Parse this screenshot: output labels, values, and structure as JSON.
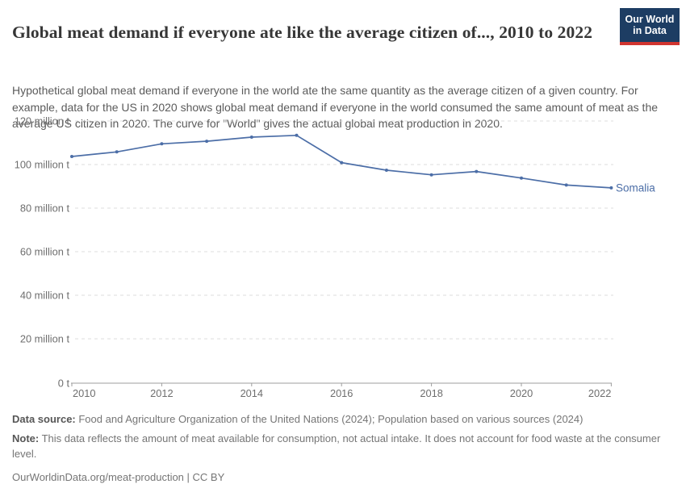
{
  "header": {
    "title": "Global meat demand if everyone ate like the average citizen of..., 2010 to 2022",
    "subtitle": "Hypothetical global meat demand if everyone in the world ate the same quantity as the average citizen of a given country. For example, data for the US in 2020 shows global meat demand if everyone in the world consumed the same amount of meat as the average US citizen in 2020. The curve for \"World\" gives the actual global meat production in 2020.",
    "logo": {
      "line1": "Our World",
      "line2": "in Data",
      "bg_color": "#1d3d63",
      "accent_color": "#d13530"
    }
  },
  "chart_data": {
    "type": "line",
    "title": "Global meat demand if everyone ate like the average citizen of..., 2010 to 2022",
    "x": [
      2010,
      2011,
      2012,
      2013,
      2014,
      2015,
      2016,
      2017,
      2018,
      2019,
      2020,
      2021,
      2022
    ],
    "series": [
      {
        "name": "Somalia",
        "color": "#4c6ea7",
        "values": [
          103.7,
          105.8,
          109.5,
          110.7,
          112.6,
          113.4,
          100.9,
          97.4,
          95.3,
          96.8,
          93.8,
          90.6,
          89.3
        ]
      }
    ],
    "unit": "million t",
    "ylim": [
      0,
      120
    ],
    "ytick_values": [
      0,
      20,
      40,
      60,
      80,
      100,
      120
    ],
    "ytick_labels": [
      "0 t",
      "20 million t",
      "40 million t",
      "60 million t",
      "80 million t",
      "100 million t",
      "120 million t"
    ],
    "xtick_values": [
      2010,
      2012,
      2014,
      2016,
      2018,
      2020,
      2022
    ],
    "xtick_labels": [
      "2010",
      "2012",
      "2014",
      "2016",
      "2018",
      "2020",
      "2022"
    ],
    "grid": "horizontal-dashed",
    "legend_position": "end-of-line",
    "end_label": "Somalia",
    "colors": {
      "grid": "#dcdcdc",
      "axis": "#9e9e9e",
      "tick_text": "#6e6e6e"
    }
  },
  "footer": {
    "data_source_label": "Data source:",
    "data_source_text": " Food and Agriculture Organization of the United Nations (2024); Population based on various sources (2024)",
    "note_label": "Note:",
    "note_text": " This data reflects the amount of meat available for consumption, not actual intake. It does not account for food waste at the consumer level.",
    "cc_line": "OurWorldinData.org/meat-production | CC BY"
  }
}
